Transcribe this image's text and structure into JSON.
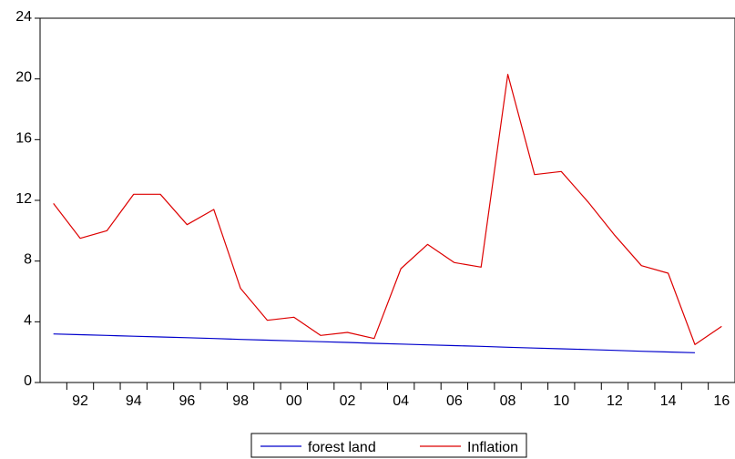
{
  "chart_data": {
    "type": "line",
    "x": [
      1991,
      1992,
      1993,
      1994,
      1995,
      1996,
      1997,
      1998,
      1999,
      2000,
      2001,
      2002,
      2003,
      2004,
      2005,
      2006,
      2007,
      2008,
      2009,
      2010,
      2011,
      2012,
      2013,
      2014,
      2015,
      2016
    ],
    "x_tick_values": [
      1992,
      1994,
      1996,
      1998,
      2000,
      2002,
      2004,
      2006,
      2008,
      2010,
      2012,
      2014,
      2016
    ],
    "x_tick_labels": [
      "92",
      "94",
      "96",
      "98",
      "00",
      "02",
      "04",
      "06",
      "08",
      "10",
      "12",
      "14",
      "16"
    ],
    "xlim": [
      1990.5,
      2016.5
    ],
    "ylim": [
      0,
      24
    ],
    "y_tick_values": [
      0,
      4,
      8,
      12,
      16,
      20,
      24
    ],
    "y_tick_labels": [
      "0",
      "4",
      "8",
      "12",
      "16",
      "20",
      "24"
    ],
    "grid": false,
    "legend_position": "bottom-center",
    "series": [
      {
        "name": "forest land",
        "color": "#0000cc",
        "values": [
          3.2,
          3.15,
          3.1,
          3.05,
          3.0,
          2.95,
          2.9,
          2.84,
          2.79,
          2.74,
          2.69,
          2.64,
          2.58,
          2.53,
          2.48,
          2.43,
          2.38,
          2.32,
          2.27,
          2.22,
          2.17,
          2.12,
          2.06,
          2.01,
          1.96,
          null
        ]
      },
      {
        "name": "Inflation",
        "color": "#dd0000",
        "values": [
          11.8,
          9.5,
          10.0,
          12.4,
          12.4,
          10.4,
          11.4,
          6.2,
          4.1,
          4.3,
          3.1,
          3.3,
          2.9,
          7.5,
          9.1,
          7.9,
          7.6,
          20.3,
          13.7,
          13.9,
          11.9,
          9.7,
          7.7,
          7.2,
          2.5,
          3.7
        ]
      }
    ]
  }
}
